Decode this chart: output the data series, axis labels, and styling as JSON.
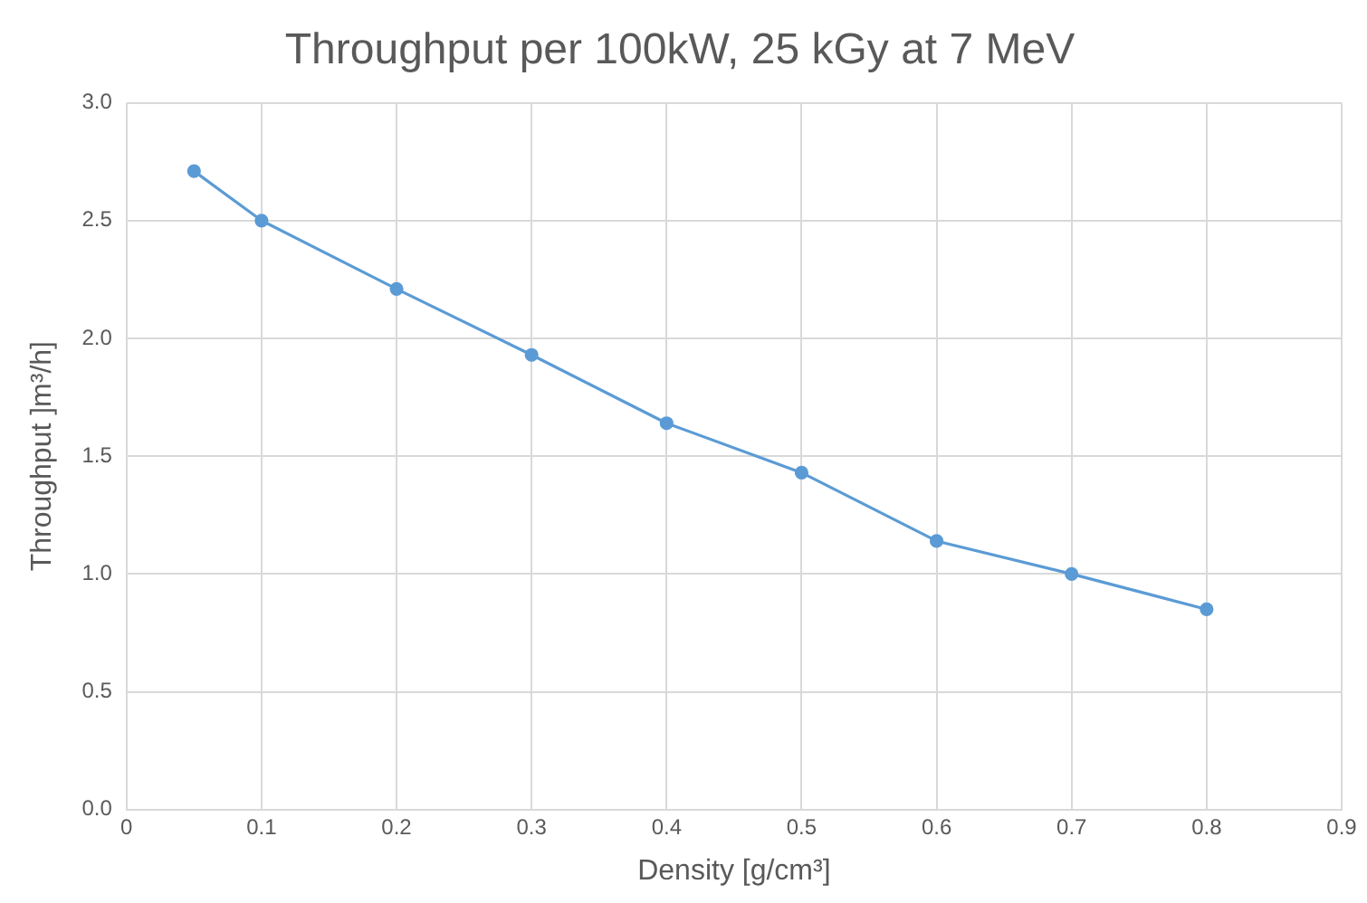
{
  "chart_data": {
    "type": "line",
    "title": "Throughput per 100kW, 25 kGy at 7 MeV",
    "xlabel": "Density [g/cm³]",
    "ylabel": "Throughput ]m³/h]",
    "x": [
      0.05,
      0.1,
      0.2,
      0.3,
      0.4,
      0.5,
      0.6,
      0.7,
      0.8
    ],
    "series": [
      {
        "color": "#5b9bd5",
        "values": [
          2.71,
          2.5,
          2.21,
          1.93,
          1.64,
          1.43,
          1.14,
          1.0,
          0.85
        ]
      }
    ],
    "xlim": [
      0,
      0.9
    ],
    "xticks": [
      0,
      0.1,
      0.2,
      0.3,
      0.4,
      0.5,
      0.6,
      0.7,
      0.8,
      0.9
    ],
    "ylim": [
      0,
      3
    ],
    "yticks": [
      {
        "value": 0,
        "label": "0.0"
      },
      {
        "value": 0.5,
        "label": "0.5"
      },
      {
        "value": 1,
        "label": "1.0"
      },
      {
        "value": 1.5,
        "label": "1.5"
      },
      {
        "value": 2,
        "label": "2.0"
      },
      {
        "value": 2.5,
        "label": "2.5"
      },
      {
        "value": 3,
        "label": "3.0"
      }
    ],
    "grid": true,
    "marker": "circle",
    "line_style": "solid",
    "legend": false
  }
}
